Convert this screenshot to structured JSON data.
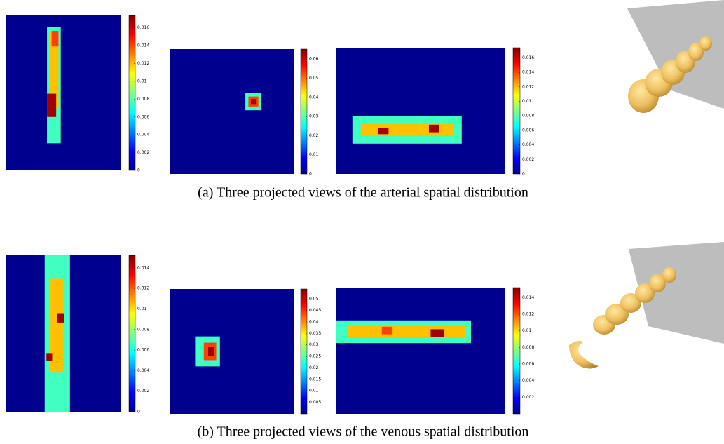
{
  "rows": [
    {
      "caption": "(a) Three projected views of the arterial spatial distribution",
      "views": [
        {
          "ticks": [
            "0.016",
            "0.014",
            "0.012",
            "0.01",
            "0.008",
            "0.006",
            "0.004",
            "0.002",
            "0"
          ]
        },
        {
          "ticks": [
            "0.06",
            "0.05",
            "0.04",
            "0.03",
            "0.02",
            "0.01",
            "0"
          ]
        },
        {
          "ticks": [
            "0.016",
            "0.014",
            "0.012",
            "0.01",
            "0.008",
            "0.006",
            "0.004",
            "0.002",
            "0"
          ]
        }
      ]
    },
    {
      "caption": "(b) Three projected views of the venous spatial distribution",
      "views": [
        {
          "ticks": [
            "0.014",
            "0.012",
            "0.01",
            "0.008",
            "0.006",
            "0.004",
            "0.002",
            "0"
          ]
        },
        {
          "ticks": [
            "0.05",
            "0.045",
            "0.04",
            "0.035",
            "0.03",
            "0.025",
            "0.02",
            "0.015",
            "0.01",
            "0.005"
          ]
        },
        {
          "ticks": [
            "0.014",
            "0.012",
            "0.01",
            "0.008",
            "0.006",
            "0.004",
            "0.002"
          ]
        }
      ]
    }
  ]
}
